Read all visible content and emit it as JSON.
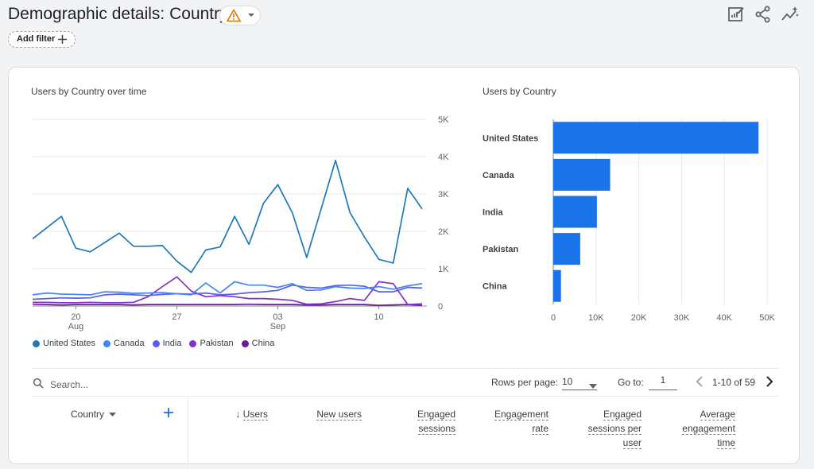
{
  "header": {
    "title": "Demographic details: Country",
    "add_filter_label": "Add filter"
  },
  "icons": {
    "warning": "warning-icon",
    "edit": "edit-report-icon",
    "share": "share-icon",
    "insights": "insights-icon"
  },
  "colors": {
    "united_states": "#1a73e8",
    "canada": "#4285f4",
    "india": "#5b5fe8",
    "pakistan": "#8430ce",
    "china": "#6a1b9a",
    "line_us": "#1e7ab8",
    "bar": "#1a73e8"
  },
  "line_chart": {
    "title": "Users by Country over time",
    "chart_data": {
      "type": "line",
      "ylim": [
        0,
        5000
      ],
      "yticks": [
        "5K",
        "4K",
        "3K",
        "2K",
        "1K",
        "0"
      ],
      "xticks": [
        {
          "day": "20",
          "month": "Aug",
          "index": 3
        },
        {
          "day": "27",
          "month": "",
          "index": 10
        },
        {
          "day": "03",
          "month": "Sep",
          "index": 17
        },
        {
          "day": "10",
          "month": "",
          "index": 24
        }
      ],
      "series": [
        {
          "name": "United States",
          "key": "united_states",
          "values": [
            1800,
            2100,
            2400,
            1550,
            1450,
            1700,
            1950,
            1600,
            1600,
            1620,
            1200,
            900,
            1500,
            1580,
            2400,
            1650,
            2750,
            3250,
            2500,
            1300,
            2600,
            3900,
            2500,
            1850,
            1250,
            1150,
            3150,
            2600
          ]
        },
        {
          "name": "Canada",
          "key": "canada",
          "values": [
            300,
            350,
            320,
            310,
            300,
            380,
            370,
            340,
            350,
            360,
            330,
            300,
            620,
            350,
            650,
            560,
            560,
            500,
            600,
            420,
            430,
            520,
            480,
            470,
            520,
            450,
            540,
            600
          ]
        },
        {
          "name": "India",
          "key": "india",
          "values": [
            180,
            200,
            220,
            210,
            220,
            300,
            320,
            300,
            280,
            310,
            330,
            320,
            350,
            300,
            320,
            360,
            380,
            420,
            560,
            500,
            480,
            550,
            560,
            530,
            380,
            380,
            500,
            480
          ]
        },
        {
          "name": "Pakistan",
          "key": "pakistan",
          "values": [
            100,
            100,
            90,
            90,
            100,
            90,
            90,
            100,
            250,
            520,
            780,
            400,
            250,
            280,
            250,
            200,
            200,
            180,
            150,
            50,
            60,
            120,
            200,
            150,
            650,
            600,
            40,
            60
          ]
        },
        {
          "name": "China",
          "key": "china",
          "values": [
            50,
            40,
            30,
            40,
            40,
            40,
            40,
            30,
            40,
            40,
            40,
            40,
            40,
            40,
            40,
            50,
            40,
            40,
            40,
            30,
            30,
            40,
            40,
            40,
            20,
            30,
            40,
            20
          ]
        }
      ]
    }
  },
  "bar_chart": {
    "title": "Users by Country",
    "chart_data": {
      "type": "bar",
      "orientation": "horizontal",
      "categories": [
        "United States",
        "Canada",
        "India",
        "Pakistan",
        "China"
      ],
      "values": [
        48000,
        13300,
        10200,
        6300,
        1800
      ],
      "xlim": [
        0,
        50000
      ],
      "xticks": [
        "0",
        "10K",
        "20K",
        "30K",
        "40K",
        "50K"
      ]
    }
  },
  "table": {
    "search_placeholder": "Search...",
    "rows_per_page_label": "Rows per page:",
    "rows_per_page_value": "10",
    "goto_label": "Go to:",
    "goto_value": "1",
    "page_range": "1-10 of 59",
    "dimension_header": "Country",
    "columns": [
      {
        "lines": [
          "Users"
        ],
        "sort": "↓"
      },
      {
        "lines": [
          "New users"
        ]
      },
      {
        "lines": [
          "Engaged",
          "sessions"
        ]
      },
      {
        "lines": [
          "Engagement",
          "rate"
        ]
      },
      {
        "lines": [
          "Engaged",
          "sessions per",
          "user"
        ]
      },
      {
        "lines": [
          "Average",
          "engagement",
          "time"
        ]
      }
    ]
  }
}
